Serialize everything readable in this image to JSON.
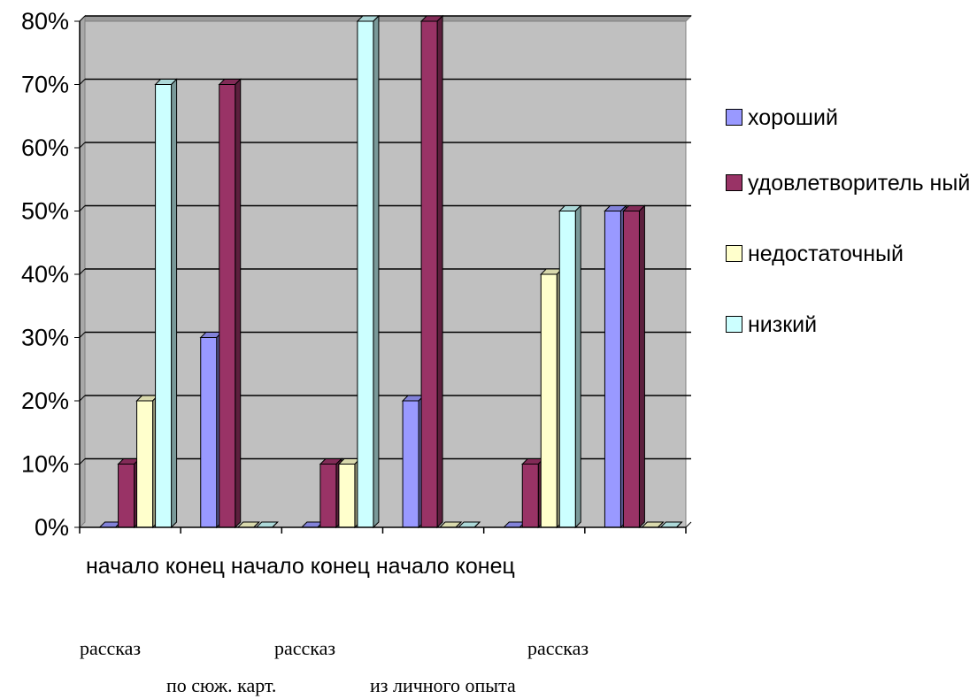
{
  "chart_data": {
    "type": "bar",
    "categories": [
      "начало",
      "конец",
      "начало",
      "конец",
      "начало",
      "конец"
    ],
    "series": [
      {
        "name": "хороший",
        "color": "#9999ff",
        "values": [
          0,
          30,
          0,
          20,
          0,
          50
        ]
      },
      {
        "name": "удовлетворительный",
        "color": "#993366",
        "values": [
          10,
          70,
          10,
          80,
          10,
          50
        ]
      },
      {
        "name": "недостаточный",
        "color": "#ffffcc",
        "values": [
          20,
          0,
          10,
          0,
          40,
          0
        ]
      },
      {
        "name": "низкий",
        "color": "#ccffff",
        "values": [
          70,
          0,
          80,
          0,
          50,
          0
        ]
      }
    ],
    "y_ticks": [
      "0%",
      "10%",
      "20%",
      "30%",
      "40%",
      "50%",
      "60%",
      "70%",
      "80%"
    ],
    "ylim": [
      0,
      80
    ],
    "grid": true,
    "plot_background": "#c0c0c0",
    "legend_position": "right",
    "legend_labels": [
      "хороший",
      "удовлетворитель ный",
      "недостаточный",
      "низкий"
    ],
    "group_captions": [
      {
        "line1": "рассказ",
        "line2": "по сюж. карт."
      },
      {
        "line1": "рассказ",
        "line2": "из личного опыта"
      },
      {
        "line1": "рассказ",
        "line2": ""
      }
    ]
  }
}
